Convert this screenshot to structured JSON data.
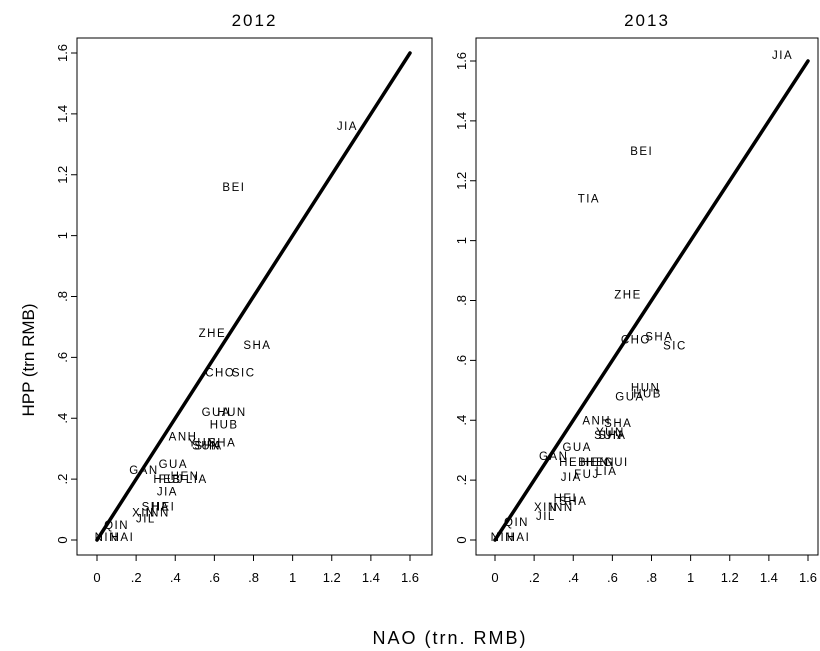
{
  "figure": {
    "ylabel": "HPP (trn RMB)",
    "xlabel": "NAO (trn. RMB)"
  },
  "chart_data": [
    {
      "type": "scatter",
      "title": "2012",
      "xlim": [
        0,
        1.6
      ],
      "ylim": [
        0,
        1.6
      ],
      "x_ticks": [
        "0",
        ".2",
        ".4",
        ".6",
        ".8",
        "1",
        "1.2",
        "1.4",
        "1.6"
      ],
      "y_ticks": [
        "0",
        ".2",
        ".4",
        ".6",
        ".8",
        "1",
        "1.2",
        "1.4",
        "1.6"
      ],
      "reference_line": {
        "x": [
          0,
          1.6
        ],
        "y": [
          0,
          1.6
        ]
      },
      "points": [
        {
          "label": "JIA",
          "x": 1.28,
          "y": 1.36
        },
        {
          "label": "BEI",
          "x": 0.7,
          "y": 1.16
        },
        {
          "label": "ZHE",
          "x": 0.59,
          "y": 0.68
        },
        {
          "label": "SHA",
          "x": 0.82,
          "y": 0.64
        },
        {
          "label": "CHO",
          "x": 0.63,
          "y": 0.55
        },
        {
          "label": "SIC",
          "x": 0.75,
          "y": 0.55
        },
        {
          "label": "GUA",
          "x": 0.61,
          "y": 0.42
        },
        {
          "label": "HUN",
          "x": 0.69,
          "y": 0.42
        },
        {
          "label": "HUB",
          "x": 0.65,
          "y": 0.38
        },
        {
          "label": "ANH",
          "x": 0.44,
          "y": 0.34
        },
        {
          "label": "YUN",
          "x": 0.54,
          "y": 0.32
        },
        {
          "label": "SHA",
          "x": 0.64,
          "y": 0.32
        },
        {
          "label": "SUN",
          "x": 0.56,
          "y": 0.31
        },
        {
          "label": "SHA",
          "x": 0.57,
          "y": 0.31
        },
        {
          "label": "GUA",
          "x": 0.39,
          "y": 0.25
        },
        {
          "label": "GAN",
          "x": 0.24,
          "y": 0.23
        },
        {
          "label": "HEN",
          "x": 0.45,
          "y": 0.21
        },
        {
          "label": "HEB",
          "x": 0.36,
          "y": 0.2
        },
        {
          "label": "FUJ",
          "x": 0.38,
          "y": 0.2
        },
        {
          "label": "LIA",
          "x": 0.51,
          "y": 0.2
        },
        {
          "label": "JIA",
          "x": 0.36,
          "y": 0.16
        },
        {
          "label": "HEI",
          "x": 0.34,
          "y": 0.11
        },
        {
          "label": "SHA",
          "x": 0.3,
          "y": 0.11
        },
        {
          "label": "XIN",
          "x": 0.24,
          "y": 0.09
        },
        {
          "label": "INN",
          "x": 0.31,
          "y": 0.09
        },
        {
          "label": "JIL",
          "x": 0.25,
          "y": 0.07
        },
        {
          "label": "QIN",
          "x": 0.1,
          "y": 0.05
        },
        {
          "label": "NIN",
          "x": 0.05,
          "y": 0.01
        },
        {
          "label": "HAI",
          "x": 0.13,
          "y": 0.01
        }
      ]
    },
    {
      "type": "scatter",
      "title": "2013",
      "xlim": [
        0,
        1.6
      ],
      "ylim": [
        0,
        1.6
      ],
      "x_ticks": [
        "0",
        ".2",
        ".4",
        ".6",
        ".8",
        "1",
        "1.2",
        "1.4",
        "1.6"
      ],
      "y_ticks": [
        "0",
        ".2",
        ".4",
        ".6",
        ".8",
        "1",
        "1.2",
        "1.4",
        "1.6"
      ],
      "reference_line": {
        "x": [
          0,
          1.6
        ],
        "y": [
          0,
          1.6
        ]
      },
      "points": [
        {
          "label": "JIA",
          "x": 1.47,
          "y": 1.62
        },
        {
          "label": "BEI",
          "x": 0.75,
          "y": 1.3
        },
        {
          "label": "TIA",
          "x": 0.48,
          "y": 1.14
        },
        {
          "label": "ZHE",
          "x": 0.68,
          "y": 0.82
        },
        {
          "label": "SHA",
          "x": 0.84,
          "y": 0.68
        },
        {
          "label": "CHO",
          "x": 0.72,
          "y": 0.67
        },
        {
          "label": "SIC",
          "x": 0.92,
          "y": 0.65
        },
        {
          "label": "HUN",
          "x": 0.77,
          "y": 0.51
        },
        {
          "label": "GUA",
          "x": 0.69,
          "y": 0.48
        },
        {
          "label": "HUB",
          "x": 0.78,
          "y": 0.49
        },
        {
          "label": "ANH",
          "x": 0.52,
          "y": 0.4
        },
        {
          "label": "SHA",
          "x": 0.63,
          "y": 0.39
        },
        {
          "label": "YUN",
          "x": 0.59,
          "y": 0.36
        },
        {
          "label": "SUN",
          "x": 0.58,
          "y": 0.35
        },
        {
          "label": "SHA",
          "x": 0.6,
          "y": 0.35
        },
        {
          "label": "GUA",
          "x": 0.42,
          "y": 0.31
        },
        {
          "label": "GAN",
          "x": 0.3,
          "y": 0.28
        },
        {
          "label": "HEB",
          "x": 0.4,
          "y": 0.26
        },
        {
          "label": "HEN",
          "x": 0.51,
          "y": 0.26
        },
        {
          "label": "HEN",
          "x": 0.54,
          "y": 0.26
        },
        {
          "label": "GUI",
          "x": 0.62,
          "y": 0.26
        },
        {
          "label": "FUJ",
          "x": 0.47,
          "y": 0.22
        },
        {
          "label": "LIA",
          "x": 0.57,
          "y": 0.23
        },
        {
          "label": "JIA",
          "x": 0.39,
          "y": 0.21
        },
        {
          "label": "HEI",
          "x": 0.36,
          "y": 0.14
        },
        {
          "label": "SHA",
          "x": 0.4,
          "y": 0.13
        },
        {
          "label": "XIN",
          "x": 0.26,
          "y": 0.11
        },
        {
          "label": "INN",
          "x": 0.34,
          "y": 0.11
        },
        {
          "label": "JIL",
          "x": 0.26,
          "y": 0.08
        },
        {
          "label": "QIN",
          "x": 0.11,
          "y": 0.06
        },
        {
          "label": "NIN",
          "x": 0.04,
          "y": 0.01
        },
        {
          "label": "HAI",
          "x": 0.12,
          "y": 0.01
        }
      ]
    }
  ]
}
